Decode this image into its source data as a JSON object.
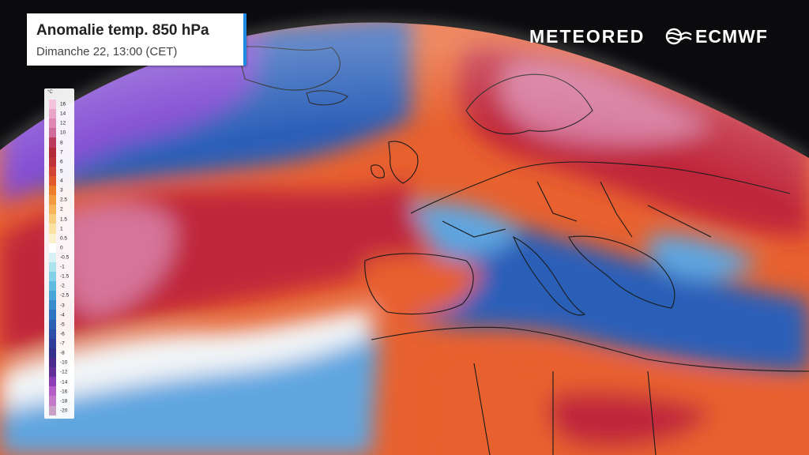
{
  "header": {
    "title": "Anomalie temp. 850 hPa",
    "subtitle": "Dimanche 22, 13:00 (CET)"
  },
  "legend": {
    "unit": "°C",
    "labels": [
      "16",
      "14",
      "12",
      "10",
      "8",
      "7",
      "6",
      "5",
      "4",
      "3",
      "2.5",
      "2",
      "1.5",
      "1",
      "0.5",
      "0",
      "-0.5",
      "-1",
      "-1.5",
      "-2",
      "-2.5",
      "-3",
      "-4",
      "-5",
      "-6",
      "-7",
      "-8",
      "-10",
      "-12",
      "-14",
      "-16",
      "-18",
      "-20"
    ],
    "colors": [
      "#f3c4dc",
      "#eaa6c8",
      "#df88b5",
      "#cf6c9c",
      "#bb3a5e",
      "#b22a3a",
      "#c0323a",
      "#d24534",
      "#e05a2c",
      "#ec7d2a",
      "#f39a3e",
      "#f6b559",
      "#f8cd7b",
      "#fae2a3",
      "#fbf0cd",
      "#ffffff",
      "#d7f0f5",
      "#ade3ee",
      "#83d1e8",
      "#5fbbe0",
      "#49a4d8",
      "#3a8bcc",
      "#2f74c0",
      "#2b60b4",
      "#2b4ea6",
      "#2d3d98",
      "#352f8c",
      "#4a2a8a",
      "#642e98",
      "#8c3cb4",
      "#b45cc8",
      "#c27ac9",
      "#c8a0c8"
    ]
  },
  "brands": {
    "meteored": "METEORED",
    "ecmwf": "ECMWF"
  },
  "map": {
    "projection": "orthographic",
    "region": "North Atlantic and Europe",
    "colors": {
      "space": "#0b0b0d",
      "very_cold": "#7a3fd0",
      "cold": "#2b5fb8",
      "cool": "#5fa6e0",
      "neutral": "#f2f5f7",
      "warm": "#e8612e",
      "hot": "#c0283a",
      "very_hot": "#d5749a",
      "borders": "#1a1a1a"
    }
  }
}
